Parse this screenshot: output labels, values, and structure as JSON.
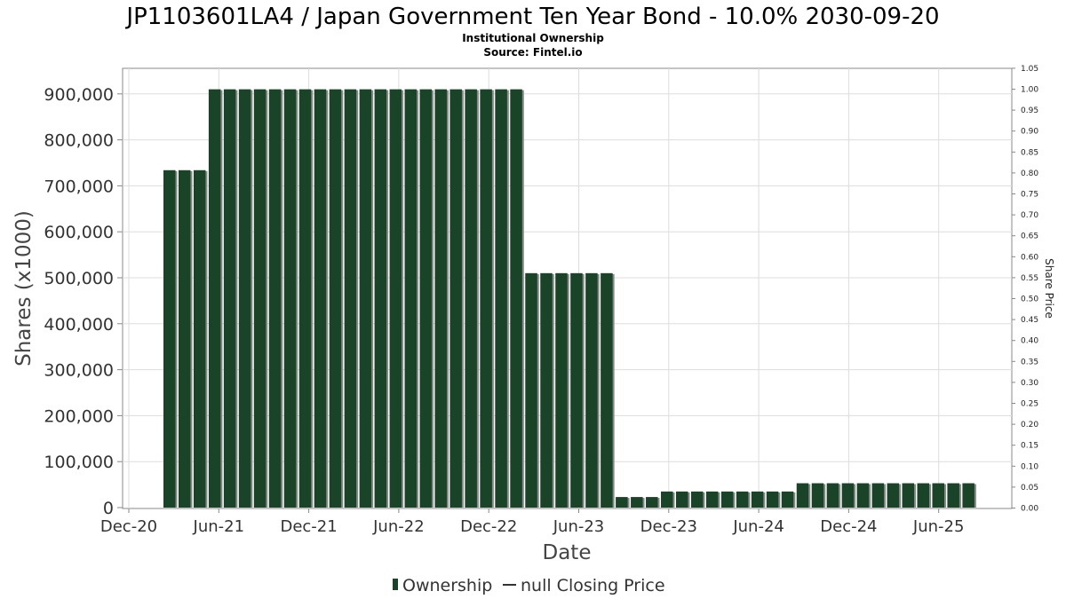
{
  "chart_data": {
    "type": "bar",
    "title": "JP1103601LA4 / Japan Government Ten Year Bond - 10.0% 2030-09-20",
    "subtitle_1": "Institutional Ownership",
    "subtitle_2": "Source: Fintel.io",
    "xlabel": "Date",
    "ylabel": "Shares (x1000)",
    "y2label": "Share Price",
    "ylim": [
      0,
      950000
    ],
    "y2lim": [
      0,
      1.05
    ],
    "grid": true,
    "legend_position": "bottom",
    "yticks": [
      "0",
      "100,000",
      "200,000",
      "300,000",
      "400,000",
      "500,000",
      "600,000",
      "700,000",
      "800,000",
      "900,000"
    ],
    "y2ticks": [
      "0.00",
      "0.05",
      "0.10",
      "0.15",
      "0.20",
      "0.25",
      "0.30",
      "0.35",
      "0.40",
      "0.45",
      "0.50",
      "0.55",
      "0.60",
      "0.65",
      "0.70",
      "0.75",
      "0.80",
      "0.85",
      "0.90",
      "0.95",
      "1.00",
      "1.05"
    ],
    "xticks": [
      "Dec-20",
      "Jun-21",
      "Dec-21",
      "Jun-22",
      "Dec-22",
      "Jun-23",
      "Dec-23",
      "Jun-24",
      "Dec-24",
      "Jun-25"
    ],
    "series": [
      {
        "name": "Ownership",
        "values": [
          734000,
          734000,
          734000,
          910000,
          910000,
          910000,
          910000,
          910000,
          910000,
          910000,
          910000,
          910000,
          910000,
          910000,
          910000,
          910000,
          910000,
          910000,
          910000,
          910000,
          910000,
          910000,
          910000,
          910000,
          510000,
          510000,
          510000,
          510000,
          510000,
          510000,
          23000,
          23000,
          23000,
          35000,
          35000,
          35000,
          35000,
          35000,
          35000,
          35000,
          35000,
          35000,
          53000,
          53000,
          53000,
          53000,
          53000,
          53000,
          53000,
          53000,
          53000,
          53000,
          53000,
          53000
        ]
      },
      {
        "name": "null Closing Price",
        "values": []
      }
    ]
  },
  "colors": {
    "bar": "#1a4428",
    "bar_shadow": "#888888",
    "grid": "#dddddd",
    "axis": "#888888"
  }
}
